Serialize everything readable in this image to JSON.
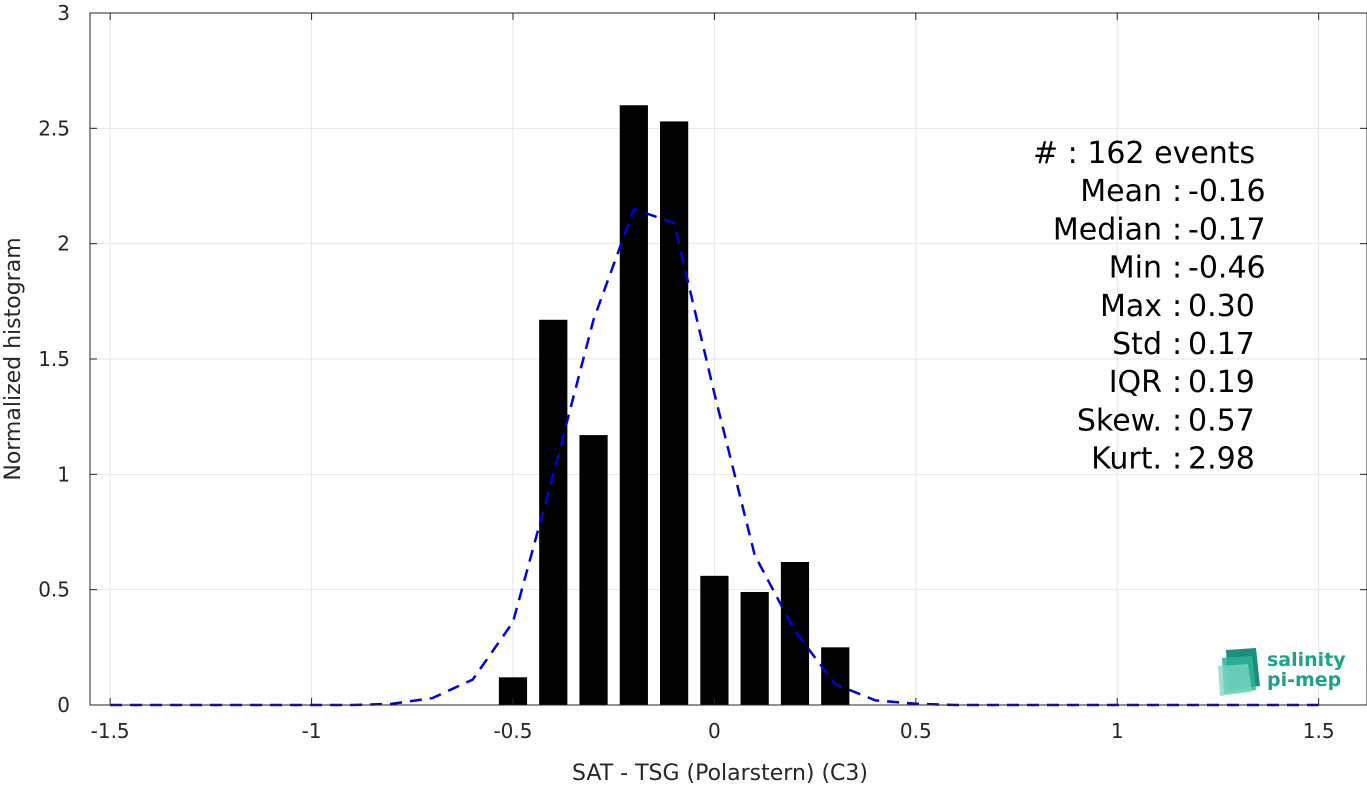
{
  "chart_data": {
    "type": "bar",
    "xlabel": "SAT - TSG (Polarstern) (C3)",
    "ylabel": "Normalized histogram",
    "xlim": [
      -1.55,
      1.62
    ],
    "ylim": [
      0,
      3
    ],
    "xticks": [
      -1.5,
      -1,
      -0.5,
      0,
      0.5,
      1,
      1.5
    ],
    "xtick_labels": [
      "-1.5",
      "-1",
      "-0.5",
      "0",
      "0.5",
      "1",
      "1.5"
    ],
    "yticks": [
      0,
      0.5,
      1,
      1.5,
      2,
      2.5,
      3
    ],
    "ytick_labels": [
      "0",
      "0.5",
      "1",
      "1.5",
      "2",
      "2.5",
      "3"
    ],
    "grid": true,
    "bar_color": "#000000",
    "bar_width": 0.07,
    "bars": {
      "x": [
        -0.5,
        -0.4,
        -0.3,
        -0.2,
        -0.1,
        0.0,
        0.1,
        0.2,
        0.3
      ],
      "values": [
        0.12,
        1.67,
        1.17,
        2.6,
        2.53,
        0.56,
        0.49,
        0.62,
        0.25
      ]
    },
    "fit_curve": {
      "style": "dashed",
      "color": "#0000dd",
      "x": [
        -1.5,
        -1.4,
        -1.3,
        -1.2,
        -1.1,
        -1.0,
        -0.9,
        -0.8,
        -0.7,
        -0.6,
        -0.5,
        -0.4,
        -0.3,
        -0.2,
        -0.1,
        0.0,
        0.1,
        0.2,
        0.3,
        0.4,
        0.5,
        0.6,
        0.7,
        0.8,
        0.9,
        1.0,
        1.1,
        1.2,
        1.3,
        1.4,
        1.5
      ],
      "values": [
        0,
        0,
        0,
        0,
        0,
        0,
        0,
        0.005,
        0.03,
        0.11,
        0.36,
        1.0,
        1.67,
        2.15,
        2.09,
        1.35,
        0.65,
        0.32,
        0.09,
        0.02,
        0.005,
        0,
        0,
        0,
        0,
        0,
        0,
        0,
        0,
        0,
        0
      ]
    },
    "annotation": [
      {
        "text": "#  : 162 events",
        "align": "wide"
      },
      {
        "text": "Mean : -0.16",
        "align": "colon"
      },
      {
        "text": "Median : -0.17",
        "align": "colon"
      },
      {
        "text": "Min : -0.46",
        "align": "colon"
      },
      {
        "text": "Max : 0.30",
        "align": "colon"
      },
      {
        "text": "Std : 0.17",
        "align": "colon"
      },
      {
        "text": "IQR : 0.19",
        "align": "colon"
      },
      {
        "text": "Skew. : 0.57",
        "align": "colon"
      },
      {
        "text": "Kurt. : 2.98",
        "align": "colon"
      }
    ]
  },
  "logo": {
    "line1": "salinity",
    "line2": "pi-mep",
    "color": "#1fa28c"
  }
}
